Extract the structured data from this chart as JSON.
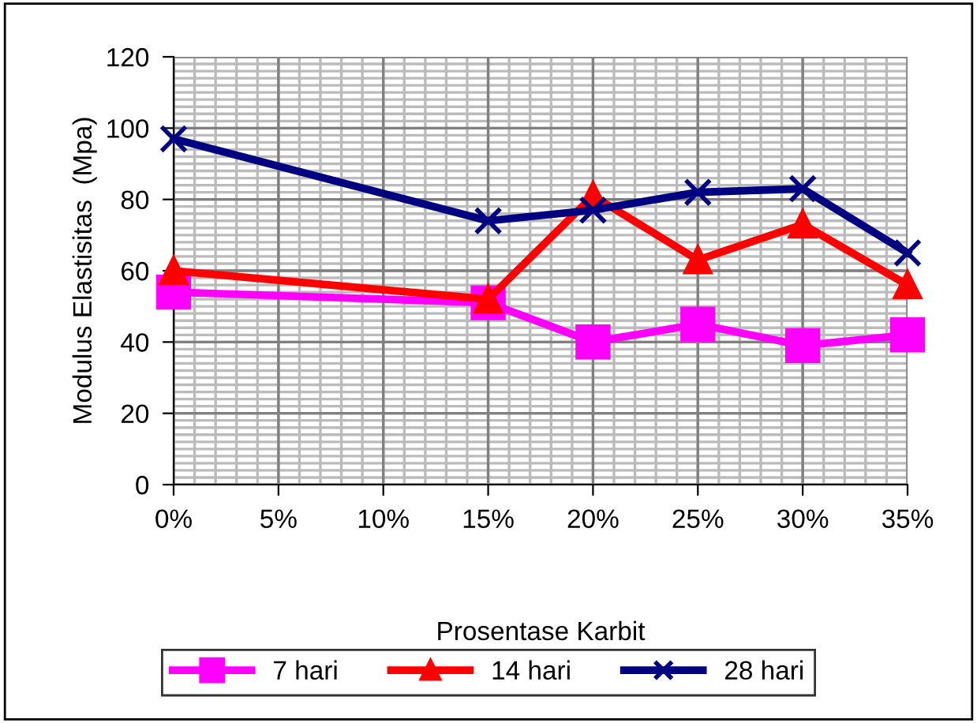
{
  "chart_data": {
    "type": "line",
    "xlabel": "Prosentase Karbit",
    "ylabel": "Modulus Elastisitas  (Mpa)",
    "x": [
      0,
      15,
      20,
      25,
      30,
      35
    ],
    "series": [
      {
        "name": "7 hari",
        "color": "#ff00ff",
        "values": [
          54,
          51,
          40,
          45,
          39,
          42
        ],
        "marker": "square"
      },
      {
        "name": "14 hari",
        "color": "#ff0000",
        "values": [
          60,
          52,
          81,
          63,
          73,
          56
        ],
        "marker": "triangle"
      },
      {
        "name": "28 hari",
        "color": "#000080",
        "values": [
          97,
          74,
          77,
          82,
          83,
          65
        ],
        "marker": "cross"
      }
    ],
    "xlim": [
      0,
      35
    ],
    "xticks": [
      {
        "value": 0,
        "label": "0%"
      },
      {
        "value": 5,
        "label": "5%"
      },
      {
        "value": 10,
        "label": "10%"
      },
      {
        "value": 15,
        "label": "15%"
      },
      {
        "value": 20,
        "label": "20%"
      },
      {
        "value": 25,
        "label": "25%"
      },
      {
        "value": 30,
        "label": "30%"
      },
      {
        "value": 35,
        "label": "35%"
      }
    ],
    "ylim": [
      0,
      120
    ],
    "yticks": [
      0,
      20,
      40,
      60,
      80,
      100,
      120
    ],
    "grid": true,
    "legend": "bottom",
    "line_style": "solid"
  }
}
